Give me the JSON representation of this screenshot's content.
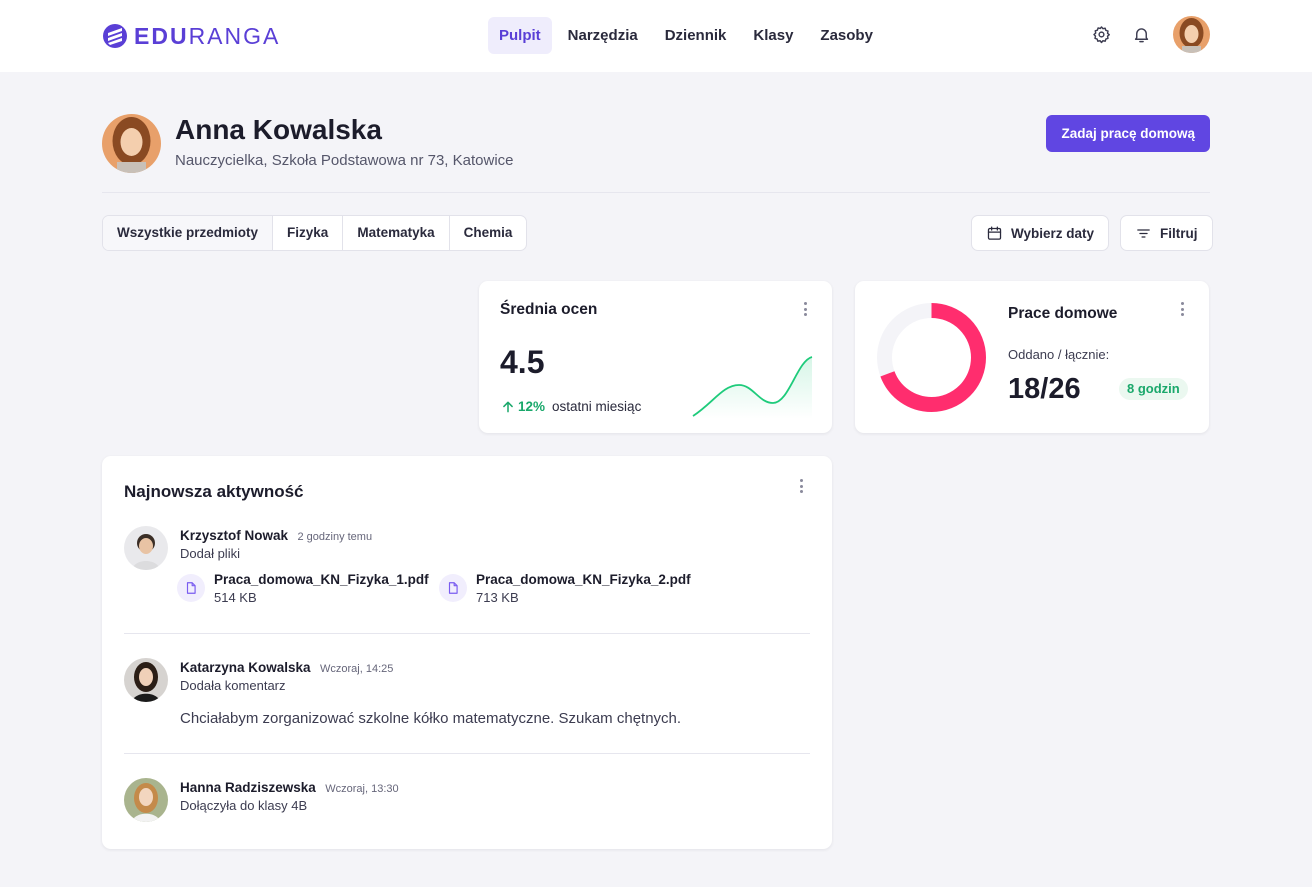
{
  "brand": {
    "part1": "EDU",
    "part2": "RANGA",
    "accent": "#5a3fd6"
  },
  "nav": {
    "items": [
      {
        "label": "Pulpit",
        "active": true
      },
      {
        "label": "Narzędzia",
        "active": false
      },
      {
        "label": "Dziennik",
        "active": false
      },
      {
        "label": "Klasy",
        "active": false
      },
      {
        "label": "Zasoby",
        "active": false
      }
    ],
    "icons": [
      "gear-icon",
      "bell-icon"
    ]
  },
  "profile": {
    "name": "Anna Kowalska",
    "role": "Nauczycielka, Szkoła Podstawowa nr 73, Katowice",
    "primary_action": "Zadaj pracę domową"
  },
  "filters": {
    "subjects": [
      "Wszystkie przedmioty",
      "Fizyka",
      "Matematyka",
      "Chemia"
    ],
    "selected": "Wszystkie przedmioty",
    "date_button": "Wybierz daty",
    "filter_button": "Filtruj"
  },
  "average_card": {
    "title": "Średnia ocen",
    "value": "4.5",
    "trend_pct": "12%",
    "trend_label": "ostatni miesiąc",
    "trend_color": "#1aa86b"
  },
  "homework_card": {
    "title": "Prace domowe",
    "label": "Oddano / łącznie:",
    "value": "18/26",
    "submitted": 18,
    "total": 26,
    "badge": "8 godzin",
    "ring_color": "#ff2d6e"
  },
  "activity": {
    "title": "Najnowsza aktywność",
    "items": [
      {
        "name": "Krzysztof Nowak",
        "time": "2 godziny temu",
        "desc": "Dodał pliki",
        "files": [
          {
            "name": "Praca_domowa_KN_Fizyka_1.pdf",
            "size": "514 KB"
          },
          {
            "name": "Praca_domowa_KN_Fizyka_2.pdf",
            "size": "713 KB"
          }
        ]
      },
      {
        "name": "Katarzyna Kowalska",
        "time": "Wczoraj, 14:25",
        "desc": "Dodała komentarz",
        "comment": "Chciałabym zorganizować szkolne kółko matematyczne. Szukam chętnych."
      },
      {
        "name": "Hanna Radziszewska",
        "time": "Wczoraj, 13:30",
        "desc": "Dołączyła do klasy 4B"
      }
    ]
  }
}
